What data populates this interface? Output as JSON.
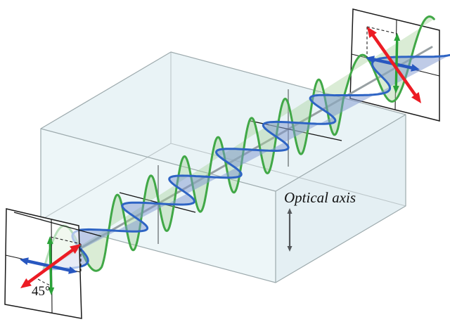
{
  "labels": {
    "optical_axis": "Optical axis",
    "angle": "45°"
  },
  "colors": {
    "background": "#ffffff",
    "red_arrow": "#ec1c24",
    "green_arrow": "#2aa238",
    "blue_arrow": "#2857c0",
    "green_wave": "#41a847",
    "green_wave_fill": "#a8d29a",
    "blue_wave": "#2e64c4",
    "blue_wave_fill": "#7f97cf",
    "axis_gray": "#98a0a3",
    "marker_gray": "#8d9497",
    "marker_black": "#141414",
    "box_edge": "#9daaad",
    "box_edge_hidden": "#bcc6c9",
    "box_face_top": "#e9f3f6",
    "box_face_left": "#edf6f8",
    "box_face_right": "#e4eff3",
    "panel_border": "#1a1a1a",
    "optical_axis_arrow": "#54585b",
    "text": "#111111"
  },
  "waves": {
    "green": {
      "orientation": "vertical",
      "amplitude": 46,
      "wavelength_before": 120,
      "wavelength_inside": 55,
      "wavelength_after": 110
    },
    "blue": {
      "orientation": "horizontal",
      "amplitude": 34,
      "wavelength_before": 120,
      "wavelength_inside": 77,
      "wavelength_after": 110
    },
    "crystal_entry_t": 95,
    "crystal_exit_t": 491
  },
  "panels": {
    "input": {
      "angle_label": "45°",
      "arrows": [
        "red-diagonal-up-arrow",
        "green-vertical-arrow",
        "blue-horizontal-arrow"
      ]
    },
    "output": {
      "arrows": [
        "red-diagonal-down-arrow",
        "green-vertical-arrow",
        "blue-horizontal-arrow"
      ]
    }
  }
}
